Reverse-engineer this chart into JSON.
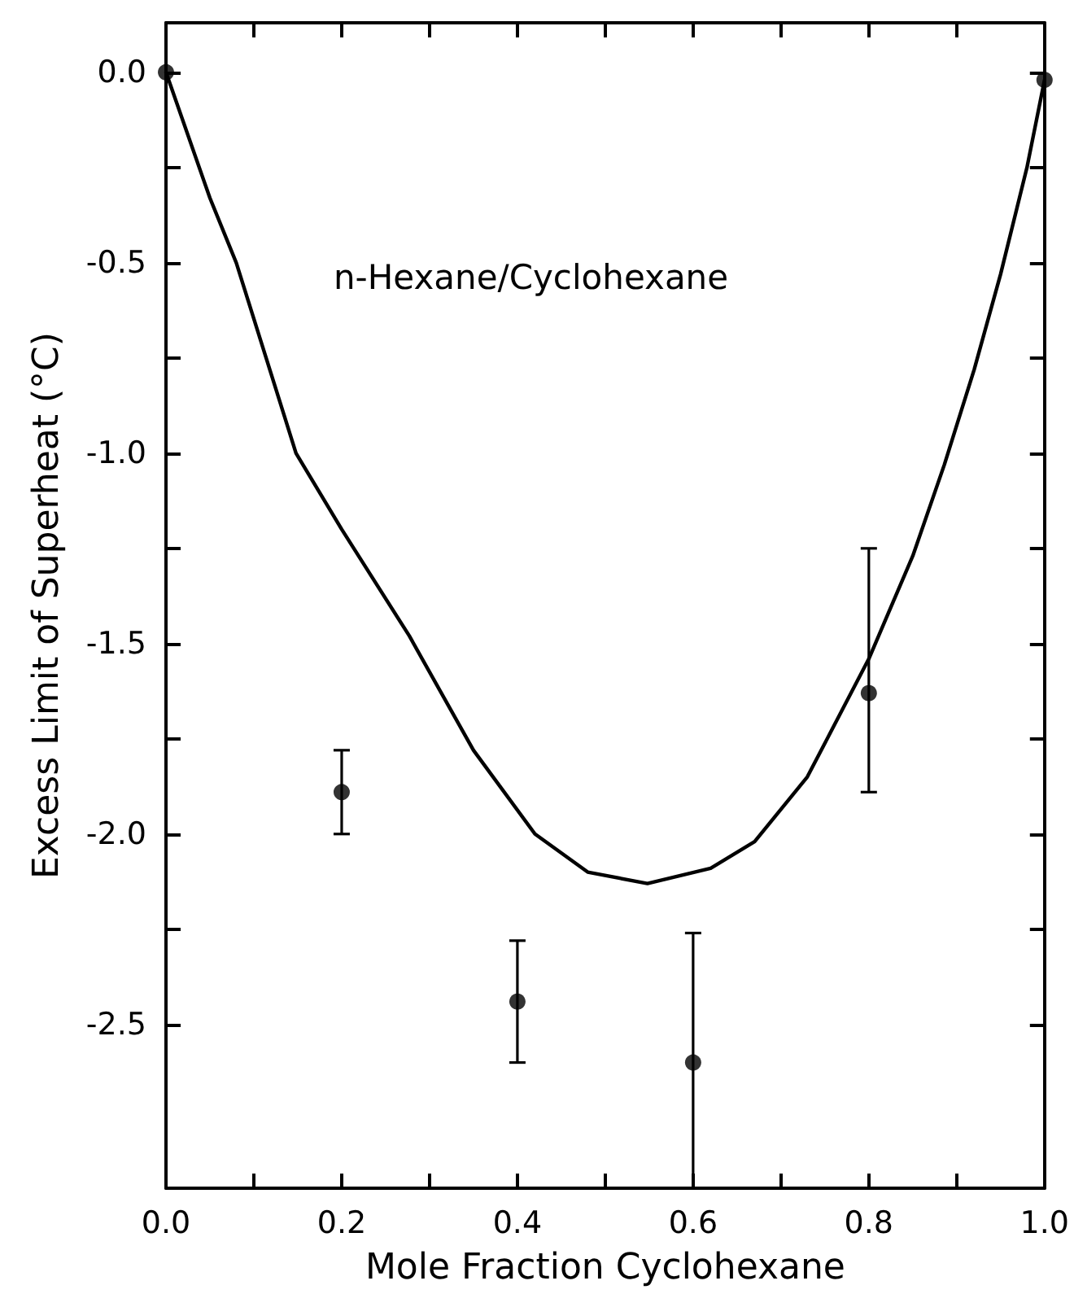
{
  "chart_data": {
    "type": "scatter",
    "xlabel": "Mole Fraction Cyclohexane",
    "ylabel": "Excess Limit of Superheat (°C)",
    "annotations": [
      "n-Hexane/Cyclohexane"
    ],
    "xlim": [
      0,
      1
    ],
    "ylim": [
      -2.93,
      0.13
    ],
    "xticks": [
      {
        "value": 0,
        "label": "0.0"
      },
      {
        "value": 0.1,
        "label": null
      },
      {
        "value": 0.2,
        "label": "0.2"
      },
      {
        "value": 0.3,
        "label": null
      },
      {
        "value": 0.4,
        "label": "0.4"
      },
      {
        "value": 0.5,
        "label": null
      },
      {
        "value": 0.6,
        "label": "0.6"
      },
      {
        "value": 0.7,
        "label": null
      },
      {
        "value": 0.8,
        "label": "0.8"
      },
      {
        "value": 0.9,
        "label": null
      },
      {
        "value": 1,
        "label": "1.0"
      }
    ],
    "yticks": [
      {
        "value": 0,
        "label": "0.0"
      },
      {
        "value": -0.25,
        "label": null
      },
      {
        "value": -0.5,
        "label": "-0.5"
      },
      {
        "value": -0.75,
        "label": null
      },
      {
        "value": -1,
        "label": "-1.0"
      },
      {
        "value": -1.25,
        "label": null
      },
      {
        "value": -1.5,
        "label": "-1.5"
      },
      {
        "value": -1.75,
        "label": null
      },
      {
        "value": -2,
        "label": "-2.0"
      },
      {
        "value": -2.25,
        "label": null
      },
      {
        "value": -2.5,
        "label": "-2.5"
      }
    ],
    "grid": false,
    "series": [
      {
        "type": "line",
        "color": "#000000",
        "marker": "none",
        "line_style": "solid",
        "x": [
          0,
          0.05,
          0.08,
          0.148,
          0.2,
          0.277,
          0.35,
          0.42,
          0.48,
          0.548,
          0.62,
          0.67,
          0.73,
          0.8,
          0.85,
          0.886,
          0.92,
          0.95,
          0.98,
          1.0
        ],
        "values": [
          0,
          -0.33,
          -0.5,
          -1.0,
          -1.2,
          -1.48,
          -1.78,
          -2.0,
          -2.1,
          -2.13,
          -2.09,
          -2.02,
          -1.85,
          -1.54,
          -1.27,
          -1.03,
          -0.78,
          -0.53,
          -0.25,
          -0.02
        ]
      },
      {
        "color": "#000000",
        "marker": "circle",
        "x": [
          0,
          0.2,
          0.4,
          0.6,
          0.8,
          1.0
        ],
        "values": [
          0,
          -1.89,
          -2.44,
          -2.6,
          -1.63,
          -0.02
        ],
        "errors": [
          null,
          [
            -2.0,
            -1.78
          ],
          [
            -2.6,
            -2.28
          ],
          [
            -2.93,
            -2.26
          ],
          [
            -1.89,
            -1.25
          ],
          null
        ]
      }
    ]
  }
}
